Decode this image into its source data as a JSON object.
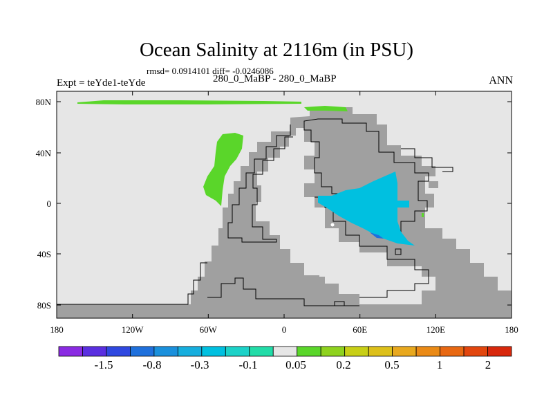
{
  "title": "Ocean Salinity at 2116m (in PSU)",
  "stats": "rmsd= 0.0914101 diff= -0.0246086",
  "experiment": "Expt = teYde1-teYde",
  "case": "280_0_MaBP - 280_0_MaBP",
  "season": "ANN",
  "lat_ticks": [
    "80N",
    "40N",
    "0",
    "40S",
    "80S"
  ],
  "lon_ticks": [
    "180",
    "120W",
    "60W",
    "0",
    "60E",
    "120E",
    "180"
  ],
  "colorbar": {
    "colors": [
      "#8a2be2",
      "#5a2fe0",
      "#2f48e0",
      "#1f70dc",
      "#1a90dc",
      "#16aede",
      "#00c0e0",
      "#1cd2c8",
      "#22dca8",
      "#e6e6e6",
      "#5ad62a",
      "#8ed21e",
      "#c8cf16",
      "#ddc01a",
      "#e8a81e",
      "#ea8a16",
      "#e86812",
      "#e2460e",
      "#d8280c"
    ],
    "labels": [
      "-1.5",
      "-0.8",
      "-0.3",
      "-0.1",
      "0.05",
      "0.2",
      "0.5",
      "1",
      "2"
    ]
  },
  "map_colors": {
    "background": "#e6e6e6",
    "land": "#a0a0a0",
    "fresh_anomaly": "#00c0e0",
    "salty_anomaly": "#5ad62a",
    "strong_fresh": "#1f70dc"
  }
}
